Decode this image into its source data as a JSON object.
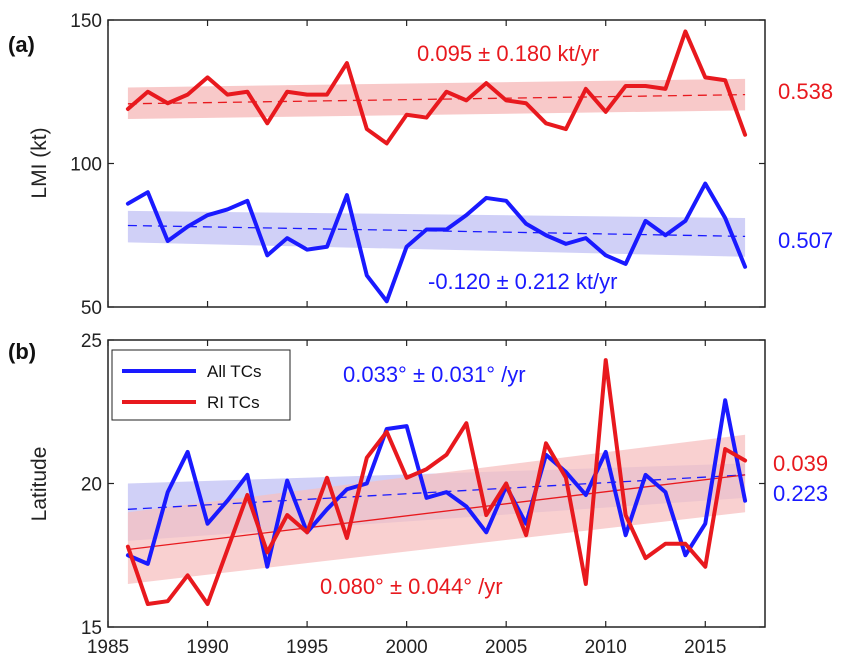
{
  "chart_data": {
    "type": "line",
    "colors": {
      "all": "#1a1aff",
      "ri": "#e8191e",
      "all_band": "#c8c8f6",
      "ri_band": "#f7c0c0"
    },
    "x": [
      1986,
      1987,
      1988,
      1989,
      1990,
      1991,
      1992,
      1993,
      1994,
      1995,
      1996,
      1997,
      1998,
      1999,
      2000,
      2001,
      2002,
      2003,
      2004,
      2005,
      2006,
      2007,
      2008,
      2009,
      2010,
      2011,
      2012,
      2013,
      2014,
      2015,
      2016,
      2017
    ],
    "xlim": [
      1985,
      2018
    ],
    "xticks": [
      "1985",
      "1990",
      "1995",
      "2000",
      "2005",
      "2010",
      "2015"
    ],
    "panels": [
      {
        "label": "(a)",
        "ylabel": "LMI (kt)",
        "ylim": [
          50,
          150
        ],
        "yticks": [
          "50",
          "100",
          "150"
        ],
        "series": [
          {
            "key": "ri",
            "values": [
              119,
              125,
              121,
              124,
              130,
              124,
              125,
              114,
              125,
              124,
              124,
              135,
              112,
              107,
              117,
              116,
              125,
              122,
              128,
              122,
              121,
              114,
              112,
              126,
              118,
              127,
              127,
              126,
              146,
              130,
              129,
              110
            ],
            "trend": [
              120.8,
              124.0
            ],
            "band_upper": [
              126.5,
              129.5
            ],
            "band_lower": [
              115.5,
              118.5
            ],
            "trend_label": "0.095 ± 0.180 kt/yr",
            "p_label": "0.538"
          },
          {
            "key": "all",
            "values": [
              86,
              90,
              73,
              78,
              82,
              84,
              87,
              68,
              74,
              70,
              71,
              89,
              61,
              52,
              71,
              77,
              77,
              82,
              88,
              87,
              79,
              75,
              72,
              74,
              68,
              65,
              80,
              75,
              80,
              93,
              81,
              64
            ],
            "trend": [
              78.4,
              74.6
            ],
            "band_upper": [
              83.5,
              81.0
            ],
            "band_lower": [
              72.5,
              67.5
            ],
            "trend_label": "-0.120 ± 0.212 kt/yr",
            "p_label": "0.507"
          }
        ]
      },
      {
        "label": "(b)",
        "ylabel": "Latitude",
        "ylim": [
          15,
          25
        ],
        "yticks": [
          "15",
          "20",
          "25"
        ],
        "series": [
          {
            "key": "all",
            "name": "All TCs",
            "values": [
              17.5,
              17.2,
              19.7,
              21.1,
              18.6,
              19.4,
              20.3,
              17.1,
              20.1,
              18.3,
              19.1,
              19.8,
              20.0,
              21.9,
              22.0,
              19.5,
              19.7,
              19.2,
              18.3,
              19.9,
              18.6,
              21.0,
              20.4,
              19.6,
              21.1,
              18.2,
              20.3,
              19.7,
              17.5,
              18.6,
              22.9,
              19.4
            ],
            "trend": [
              19.1,
              20.3
            ],
            "band_upper": [
              20.0,
              20.7
            ],
            "band_lower": [
              18.0,
              19.5
            ],
            "trend_label": "0.033° ± 0.031° /yr",
            "p_label": "0.223"
          },
          {
            "key": "ri",
            "name": "RI TCs",
            "values": [
              17.8,
              15.8,
              15.9,
              16.8,
              15.8,
              17.7,
              19.6,
              17.6,
              18.9,
              18.3,
              20.2,
              18.1,
              20.9,
              21.8,
              20.2,
              20.5,
              21.0,
              22.1,
              18.9,
              20.0,
              18.2,
              21.4,
              20.2,
              16.5,
              24.3,
              18.9,
              17.4,
              17.9,
              17.9,
              17.1,
              21.2,
              20.8
            ],
            "trend": [
              17.7,
              20.3
            ],
            "band_upper": [
              19.0,
              21.7
            ],
            "band_lower": [
              16.5,
              19.0
            ],
            "trend_label": "0.080° ± 0.044° /yr",
            "p_label": "0.039"
          }
        ]
      }
    ]
  }
}
